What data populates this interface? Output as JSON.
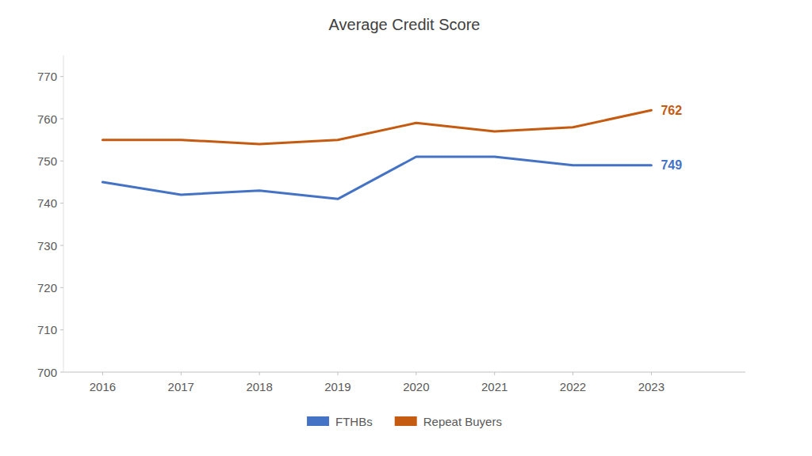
{
  "chart_data": {
    "type": "line",
    "title": "Average Credit Score",
    "x": [
      2016,
      2017,
      2018,
      2019,
      2020,
      2021,
      2022,
      2023
    ],
    "series": [
      {
        "name": "FTHBs",
        "color": "#4472C4",
        "values": [
          745,
          742,
          743,
          741,
          751,
          751,
          749,
          749
        ]
      },
      {
        "name": "Repeat Buyers",
        "color": "#C55A11",
        "values": [
          755,
          755,
          754,
          755,
          759,
          757,
          758,
          762
        ]
      }
    ],
    "xlim": [
      2015.5,
      2024.2
    ],
    "xticks": [
      2016,
      2017,
      2018,
      2019,
      2020,
      2021,
      2022,
      2023
    ],
    "ylim": [
      700,
      775
    ],
    "yticks": [
      700,
      710,
      720,
      730,
      740,
      750,
      760,
      770
    ],
    "annotations": [
      {
        "text": "749",
        "x": 2023,
        "y": 749,
        "color": "#4472C4"
      },
      {
        "text": "762",
        "x": 2023,
        "y": 762,
        "color": "#C55A11"
      }
    ],
    "grid": false,
    "legend": "bottom"
  }
}
